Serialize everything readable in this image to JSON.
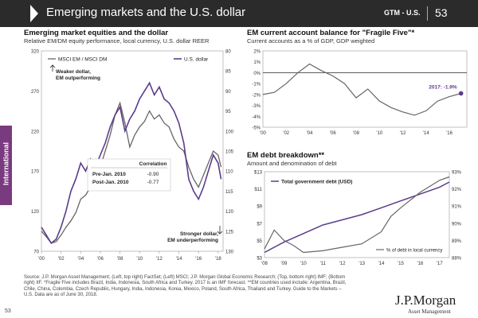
{
  "header": {
    "title": "Emerging markets and the U.S. dollar",
    "ref": "GTM - U.S.",
    "page": "53"
  },
  "side_tab": "International",
  "source_text": "Source: J.P. Morgan Asset Management; (Left, top right) FactSet; (Left) MSCI; J.P. Morgan Global Economic Research; (Top, bottom right) IMF; (Bottom right) IIF. *Fragile Five includes Brazil, India, Indonesia, South Africa and Turkey. 2017 is an IMF forecast. **EM countries used include: Argentina, Brazil, Chile, China, Colombia, Czech Republic, Hungary, India, Indonesia, Korea, Mexico, Poland, South Africa, Thailand and Turkey. Guide to the Markets – U.S. Data are as of June 30, 2018.",
  "footer": {
    "page_num": "53",
    "logo": "J.P.Morgan",
    "logo_sub": "Asset Management"
  },
  "colors": {
    "purple": "#5b3c8c",
    "gray": "#666666",
    "dark": "#2b2b2b"
  },
  "chart_data": [
    {
      "type": "line",
      "title": "Emerging market equities and the dollar",
      "subtitle": "Relative EM/DM equity performance, local currency, U.S. dollar REER",
      "x_ticks": [
        "'00",
        "'02",
        "'04",
        "'06",
        "'08",
        "'10",
        "'12",
        "'14",
        "'16",
        "'18"
      ],
      "x_range": [
        2000,
        2018.5
      ],
      "left_axis": {
        "ticks": [
          "320",
          "270",
          "220",
          "170",
          "120",
          "70"
        ],
        "range": [
          70,
          320
        ]
      },
      "right_axis": {
        "ticks": [
          "80",
          "85",
          "90",
          "95",
          "100",
          "105",
          "110",
          "115",
          "120",
          "125",
          "130"
        ],
        "range": [
          80,
          130
        ],
        "inverted": true
      },
      "series": [
        {
          "name": "MSCI EM / MSCI DM",
          "axis": "left",
          "color": "#666666",
          "x": [
            2000,
            2000.5,
            2001,
            2001.5,
            2002,
            2002.5,
            2003,
            2003.5,
            2004,
            2004.5,
            2005,
            2005.5,
            2006,
            2006.5,
            2007,
            2007.5,
            2008,
            2008.5,
            2009,
            2009.5,
            2010,
            2010.5,
            2011,
            2011.5,
            2012,
            2012.5,
            2013,
            2013.5,
            2014,
            2014.5,
            2015,
            2015.5,
            2016,
            2016.5,
            2017,
            2017.5,
            2018,
            2018.3
          ],
          "values": [
            95,
            88,
            80,
            82,
            90,
            100,
            108,
            118,
            135,
            140,
            150,
            160,
            175,
            195,
            215,
            240,
            255,
            230,
            200,
            215,
            225,
            232,
            245,
            235,
            240,
            230,
            225,
            210,
            200,
            195,
            175,
            160,
            150,
            165,
            180,
            195,
            190,
            175
          ]
        },
        {
          "name": "U.S. dollar",
          "axis": "right",
          "color": "#5b3c8c",
          "x": [
            2000,
            2000.5,
            2001,
            2001.5,
            2002,
            2002.5,
            2003,
            2003.5,
            2004,
            2004.5,
            2005,
            2005.5,
            2006,
            2006.5,
            2007,
            2007.5,
            2008,
            2008.5,
            2009,
            2009.5,
            2010,
            2010.5,
            2011,
            2011.5,
            2012,
            2012.5,
            2013,
            2013.5,
            2014,
            2014.5,
            2015,
            2015.5,
            2016,
            2016.5,
            2017,
            2017.5,
            2018,
            2018.3
          ],
          "values": [
            124,
            126,
            128,
            127,
            124,
            120,
            115,
            112,
            108,
            110,
            107,
            109,
            106,
            103,
            99,
            96,
            94,
            100,
            97,
            95,
            92,
            90,
            88,
            91,
            89,
            92,
            93,
            95,
            98,
            103,
            112,
            115,
            117,
            114,
            110,
            106,
            108,
            112
          ]
        }
      ],
      "annotations": [
        "Weaker dollar, EM outperforming",
        "Stronger dollar, EM underperforming"
      ],
      "correlation": {
        "header": "Correlation",
        "rows": [
          {
            "label": "Pre-Jan. 2010",
            "value": "-0.90"
          },
          {
            "label": "Post-Jan. 2010",
            "value": "-0.77"
          }
        ]
      }
    },
    {
      "type": "line",
      "title": "EM current account balance for \"Fragile Five\"*",
      "subtitle": "Current accounts as a % of GDP, GDP weighted",
      "x_ticks": [
        "'00",
        "'02",
        "'04",
        "'06",
        "'08",
        "'10",
        "'12",
        "'14",
        "'16"
      ],
      "x_range": [
        2000,
        2017.5
      ],
      "y_axis": {
        "ticks": [
          "2%",
          "1%",
          "0%",
          "-1%",
          "-2%",
          "-3%",
          "-4%",
          "-5%"
        ],
        "range": [
          -5,
          2
        ]
      },
      "series": [
        {
          "name": "",
          "color": "#666666",
          "x": [
            2000,
            2001,
            2002,
            2003,
            2004,
            2005,
            2006,
            2007,
            2008,
            2009,
            2010,
            2011,
            2012,
            2013,
            2014,
            2015,
            2016,
            2017
          ],
          "values": [
            -2.0,
            -1.8,
            -1.0,
            0.0,
            0.8,
            0.2,
            -0.3,
            -1.0,
            -2.3,
            -1.5,
            -2.6,
            -3.2,
            -3.6,
            -3.9,
            -3.5,
            -2.6,
            -2.2,
            -1.9
          ]
        }
      ],
      "label_2017": "2017: -1.9%"
    },
    {
      "type": "line",
      "title": "EM debt breakdown**",
      "subtitle": "Amount and denomination of debt",
      "x_ticks": [
        "'08",
        "'09",
        "'10",
        "'11",
        "'12",
        "'13",
        "'14",
        "'15",
        "'16",
        "'17"
      ],
      "x_range": [
        2008,
        2017.5
      ],
      "left_axis": {
        "ticks": [
          "$13",
          "$11",
          "$9",
          "$7",
          "$5",
          "$3"
        ],
        "range": [
          3,
          13
        ]
      },
      "right_axis": {
        "ticks": [
          "93%",
          "92%",
          "91%",
          "90%",
          "89%",
          "88%"
        ],
        "range": [
          88,
          93
        ]
      },
      "series": [
        {
          "name": "Total government debt (USD)",
          "axis": "left",
          "color": "#5b3c8c",
          "x": [
            2008,
            2009,
            2010,
            2011,
            2012,
            2013,
            2014,
            2015,
            2016,
            2017,
            2017.5
          ],
          "values": [
            3.6,
            4.8,
            5.8,
            6.8,
            7.4,
            8.0,
            8.8,
            9.6,
            10.4,
            11.2,
            11.8
          ]
        },
        {
          "name": "% of debt in local currency",
          "axis": "right",
          "color": "#666666",
          "x": [
            2008,
            2008.5,
            2009,
            2009.5,
            2010,
            2011,
            2012,
            2013,
            2014,
            2014.5,
            2015,
            2016,
            2017,
            2017.5
          ],
          "values": [
            88.5,
            89.6,
            89.0,
            88.7,
            88.3,
            88.4,
            88.6,
            88.8,
            89.5,
            90.4,
            90.9,
            91.8,
            92.5,
            92.7
          ]
        }
      ]
    }
  ]
}
